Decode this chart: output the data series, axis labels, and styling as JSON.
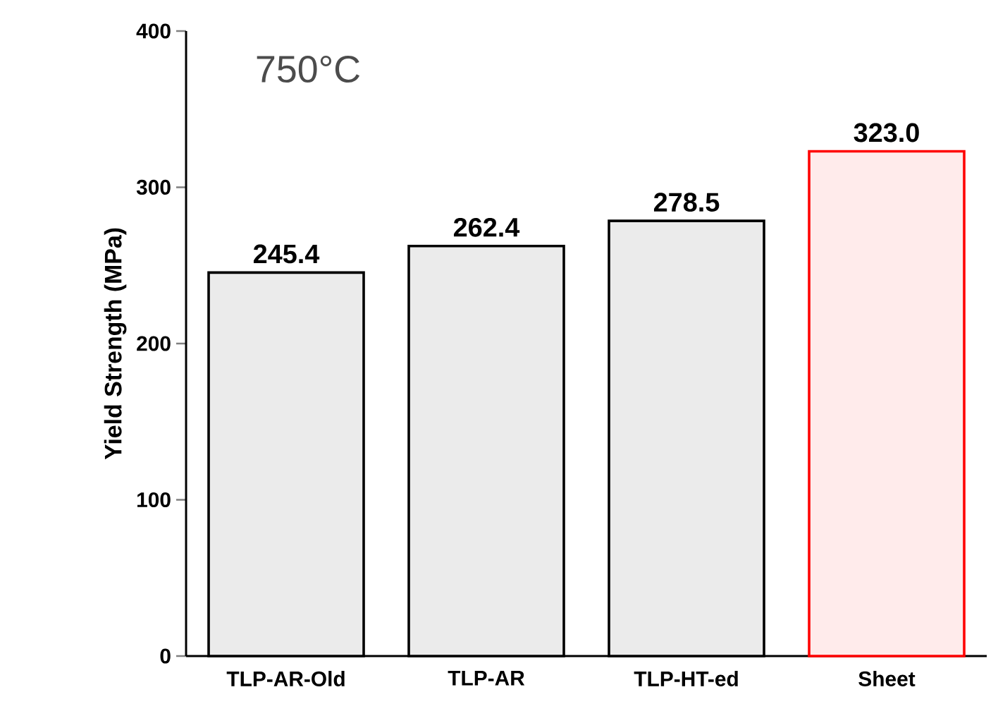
{
  "chart_data": {
    "type": "bar",
    "title": "750°C",
    "ylabel": "Yield Strength (MPa)",
    "categories": [
      "TLP-AR-Old",
      "TLP-AR",
      "TLP-HT-ed",
      "Sheet"
    ],
    "values": [
      245.4,
      262.4,
      278.5,
      323.0
    ],
    "value_labels": [
      "245.4",
      "262.4",
      "278.5",
      "323.0"
    ],
    "colors": [
      "#000000",
      "#000000",
      "#000000",
      "#ff0000"
    ],
    "ylim": [
      0,
      400
    ],
    "yticks": [
      0,
      100,
      200,
      300,
      400
    ],
    "grid": false
  }
}
